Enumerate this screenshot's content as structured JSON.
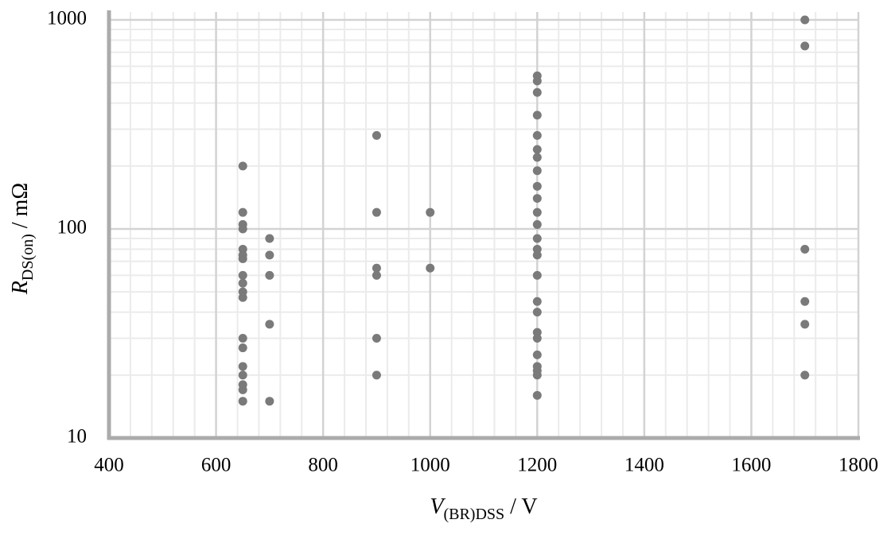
{
  "chart_data": {
    "type": "scatter",
    "x_label": {
      "symbol": "V",
      "subscript": "(BR)DSS",
      "unit": " / V"
    },
    "y_label": {
      "symbol": "R",
      "subscript": "DS(on)",
      "unit": " / mΩ"
    },
    "xlim": [
      400,
      1800
    ],
    "xticks": [
      400,
      600,
      800,
      1000,
      1200,
      1400,
      1600,
      1800
    ],
    "x_minor_step": 40,
    "ylim": [
      10,
      1000
    ],
    "yticks": [
      10,
      100,
      1000
    ],
    "y_scale": "log",
    "grid": true,
    "minor_grid": true,
    "color": "#7a7a7a",
    "x": [
      650,
      650,
      650,
      650,
      650,
      650,
      650,
      650,
      650,
      650,
      650,
      650,
      650,
      650,
      650,
      650,
      650,
      650,
      700,
      700,
      700,
      700,
      700,
      900,
      900,
      900,
      900,
      900,
      900,
      1000,
      1000,
      1200,
      1200,
      1200,
      1200,
      1200,
      1200,
      1200,
      1200,
      1200,
      1200,
      1200,
      1200,
      1200,
      1200,
      1200,
      1200,
      1200,
      1200,
      1200,
      1200,
      1200,
      1200,
      1200,
      1200,
      1200,
      1700,
      1700,
      1700,
      1700,
      1700,
      1700
    ],
    "values": [
      200,
      120,
      105,
      100,
      80,
      75,
      72,
      60,
      55,
      50,
      47,
      30,
      27,
      22,
      20,
      18,
      17,
      15,
      90,
      75,
      60,
      35,
      15,
      280,
      120,
      65,
      60,
      30,
      20,
      120,
      65,
      540,
      510,
      450,
      350,
      280,
      240,
      220,
      190,
      160,
      140,
      120,
      105,
      90,
      80,
      75,
      60,
      45,
      40,
      32,
      30,
      25,
      22,
      21,
      20,
      16,
      1000,
      750,
      80,
      45,
      35,
      20
    ]
  }
}
